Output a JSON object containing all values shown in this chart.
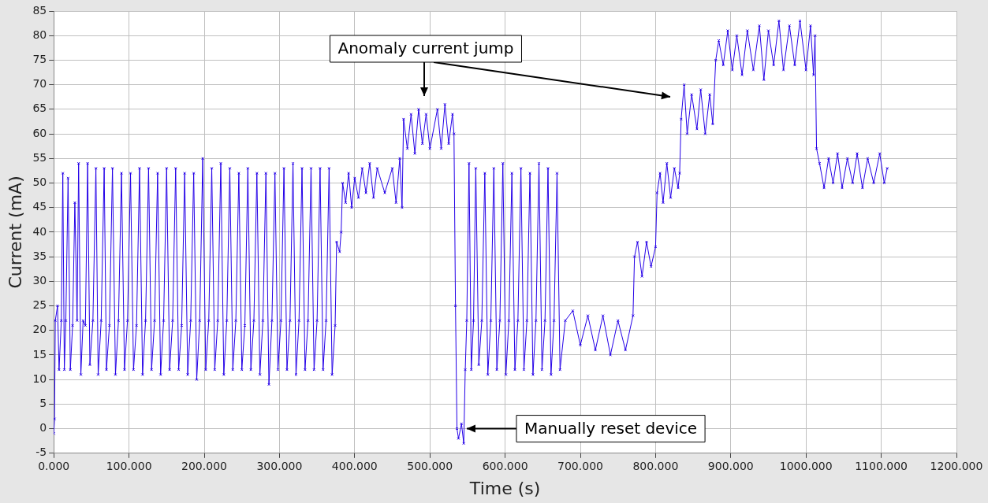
{
  "chart_data": {
    "type": "line",
    "xlabel": "Time (s)",
    "ylabel": "Current (mA)",
    "color": "#2400e8",
    "marker": "cross",
    "grid": true,
    "legend": false,
    "xlim": [
      0,
      1200
    ],
    "ylim": [
      -5,
      85
    ],
    "xticks": [
      {
        "value": 0,
        "label": "0.000"
      },
      {
        "value": 100,
        "label": "100.000"
      },
      {
        "value": 200,
        "label": "200.000"
      },
      {
        "value": 300,
        "label": "300.000"
      },
      {
        "value": 400,
        "label": "400.000"
      },
      {
        "value": 500,
        "label": "500.000"
      },
      {
        "value": 600,
        "label": "600.000"
      },
      {
        "value": 700,
        "label": "700.000"
      },
      {
        "value": 800,
        "label": "800.000"
      },
      {
        "value": 900,
        "label": "900.000"
      },
      {
        "value": 1000,
        "label": "1000.000"
      },
      {
        "value": 1100,
        "label": "1100.000"
      },
      {
        "value": 1200,
        "label": "1200.000"
      }
    ],
    "yticks": [
      -5,
      0,
      5,
      10,
      15,
      20,
      25,
      30,
      35,
      40,
      45,
      50,
      55,
      60,
      65,
      70,
      75,
      80,
      85
    ],
    "annotations": [
      "Anomaly current jump",
      {
        "text": "Manually reset device",
        "x": 549,
        "y": 0
      }
    ],
    "x": [
      0,
      1,
      2,
      5,
      7,
      10,
      12,
      14,
      16,
      19,
      22,
      25,
      28,
      31,
      33,
      36,
      39,
      42,
      45,
      48,
      52,
      56,
      59,
      63,
      67,
      70,
      74,
      78,
      82,
      86,
      90,
      94,
      98,
      102,
      106,
      110,
      114,
      118,
      122,
      126,
      130,
      134,
      138,
      142,
      146,
      150,
      154,
      158,
      162,
      166,
      170,
      174,
      178,
      182,
      186,
      190,
      194,
      198,
      202,
      206,
      210,
      214,
      218,
      222,
      226,
      230,
      234,
      238,
      242,
      246,
      250,
      254,
      258,
      262,
      266,
      270,
      274,
      278,
      282,
      286,
      290,
      294,
      298,
      302,
      306,
      310,
      314,
      318,
      322,
      326,
      330,
      334,
      338,
      342,
      346,
      350,
      354,
      358,
      362,
      366,
      370,
      374,
      376,
      380,
      382,
      384,
      388,
      392,
      396,
      400,
      405,
      410,
      415,
      420,
      425,
      430,
      440,
      450,
      455,
      460,
      463,
      465,
      470,
      475,
      480,
      485,
      490,
      495,
      500,
      510,
      515,
      520,
      525,
      530,
      532,
      534,
      536,
      538,
      542,
      545,
      547,
      549,
      552,
      555,
      558,
      561,
      565,
      569,
      573,
      577,
      581,
      585,
      589,
      593,
      597,
      601,
      605,
      609,
      613,
      617,
      621,
      625,
      629,
      633,
      637,
      641,
      645,
      649,
      653,
      657,
      661,
      665,
      669,
      673,
      680,
      690,
      700,
      710,
      720,
      730,
      740,
      750,
      760,
      770,
      772,
      776,
      782,
      788,
      794,
      800,
      802,
      806,
      810,
      815,
      820,
      825,
      830,
      832,
      834,
      838,
      842,
      848,
      855,
      860,
      866,
      872,
      876,
      880,
      884,
      890,
      896,
      902,
      908,
      915,
      922,
      930,
      938,
      944,
      950,
      957,
      964,
      970,
      978,
      985,
      992,
      1000,
      1006,
      1010,
      1012,
      1014,
      1018,
      1024,
      1030,
      1036,
      1042,
      1048,
      1055,
      1062,
      1068,
      1075,
      1082,
      1090,
      1098,
      1104,
      1108
    ],
    "values": [
      -1,
      2,
      22,
      25,
      12,
      22,
      52,
      12,
      22,
      51,
      12,
      21,
      46,
      22,
      54,
      11,
      22,
      21,
      54,
      13,
      22,
      53,
      11,
      22,
      53,
      12,
      21,
      53,
      11,
      22,
      52,
      12,
      22,
      52,
      12,
      21,
      53,
      11,
      22,
      53,
      12,
      22,
      52,
      11,
      22,
      53,
      12,
      22,
      53,
      12,
      21,
      52,
      11,
      22,
      52,
      10,
      22,
      55,
      12,
      22,
      53,
      12,
      22,
      54,
      11,
      22,
      53,
      12,
      22,
      52,
      12,
      21,
      53,
      12,
      22,
      52,
      11,
      22,
      52,
      9,
      22,
      52,
      12,
      22,
      53,
      12,
      22,
      54,
      11,
      22,
      53,
      12,
      22,
      53,
      12,
      22,
      53,
      12,
      22,
      53,
      11,
      21,
      38,
      36,
      40,
      50,
      46,
      52,
      45,
      51,
      47,
      53,
      48,
      54,
      47,
      53,
      48,
      53,
      46,
      55,
      45,
      63,
      57,
      64,
      56,
      65,
      58,
      64,
      57,
      65,
      57,
      66,
      58,
      64,
      60,
      25,
      0,
      -2,
      1,
      -3,
      12,
      22,
      54,
      12,
      22,
      53,
      13,
      22,
      52,
      11,
      22,
      53,
      12,
      22,
      54,
      11,
      22,
      52,
      12,
      22,
      53,
      12,
      22,
      52,
      11,
      22,
      54,
      12,
      22,
      53,
      11,
      22,
      52,
      12,
      22,
      24,
      17,
      23,
      16,
      23,
      15,
      22,
      16,
      23,
      35,
      38,
      31,
      38,
      33,
      37,
      48,
      52,
      46,
      54,
      47,
      53,
      49,
      52,
      63,
      70,
      60,
      68,
      61,
      69,
      60,
      68,
      62,
      75,
      79,
      74,
      81,
      73,
      80,
      72,
      81,
      73,
      82,
      71,
      81,
      74,
      83,
      73,
      82,
      74,
      83,
      73,
      82,
      72,
      80,
      57,
      54,
      49,
      55,
      50,
      56,
      49,
      55,
      50,
      56,
      49,
      55,
      50,
      56,
      50,
      53
    ]
  }
}
